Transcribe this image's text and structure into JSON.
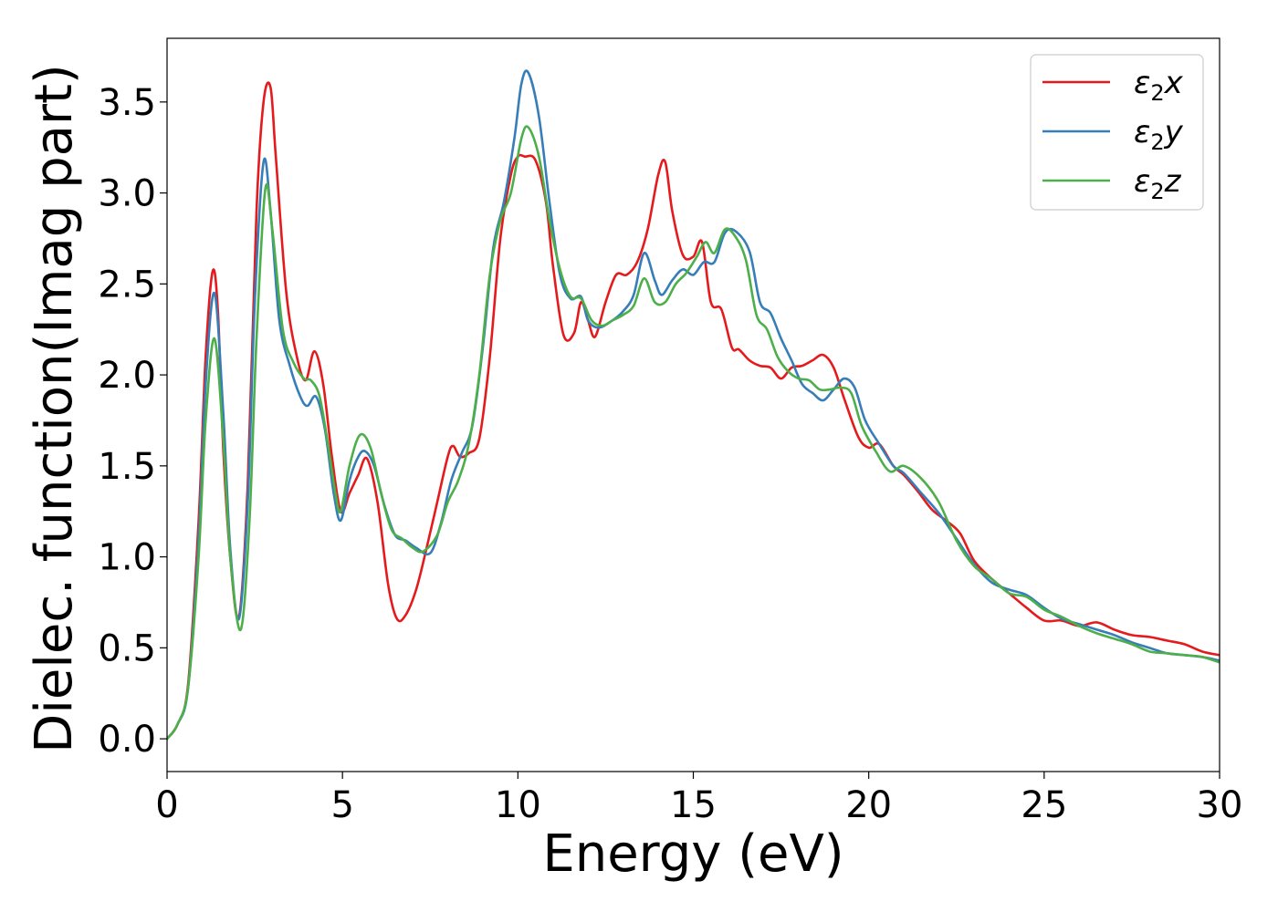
{
  "chart_data": {
    "type": "line",
    "title": "",
    "xlabel": "Energy (eV)",
    "ylabel": "Dielec. function(Imag part)",
    "xlim": [
      0,
      30
    ],
    "ylim": [
      -0.18,
      3.85
    ],
    "xticks": [
      0,
      5,
      10,
      15,
      20,
      25,
      30
    ],
    "xtick_labels": [
      "0",
      "5",
      "10",
      "15",
      "20",
      "25",
      "30"
    ],
    "yticks": [
      0.0,
      0.5,
      1.0,
      1.5,
      2.0,
      2.5,
      3.0,
      3.5
    ],
    "ytick_labels": [
      "0.0",
      "0.5",
      "1.0",
      "1.5",
      "2.0",
      "2.5",
      "3.0",
      "3.5"
    ],
    "grid": false,
    "legend_position": "top-right",
    "series": [
      {
        "name": "ε₂x",
        "legend_main": "ε",
        "legend_sub": "2",
        "legend_suffix": "x",
        "color": "#e41a1c",
        "x": [
          0,
          0.3,
          0.6,
          0.9,
          1.1,
          1.3,
          1.45,
          1.6,
          1.8,
          2.05,
          2.3,
          2.55,
          2.75,
          2.95,
          3.1,
          3.4,
          3.7,
          3.95,
          4.2,
          4.45,
          4.7,
          4.95,
          5.2,
          5.45,
          5.7,
          6.0,
          6.3,
          6.55,
          6.8,
          7.1,
          7.4,
          7.7,
          8.0,
          8.15,
          8.35,
          8.6,
          8.9,
          9.2,
          9.5,
          9.8,
          10.0,
          10.2,
          10.5,
          10.8,
          11.0,
          11.3,
          11.6,
          11.8,
          12.0,
          12.2,
          12.5,
          12.8,
          13.1,
          13.4,
          13.7,
          14.0,
          14.2,
          14.4,
          14.7,
          15.0,
          15.25,
          15.5,
          15.8,
          16.1,
          16.3,
          16.6,
          16.9,
          17.2,
          17.5,
          17.8,
          18.1,
          18.4,
          18.7,
          19.0,
          19.3,
          19.7,
          20.0,
          20.3,
          20.7,
          21.0,
          21.4,
          21.8,
          22.2,
          22.6,
          23.0,
          23.5,
          24.0,
          24.5,
          25.0,
          25.5,
          26.0,
          26.5,
          27.0,
          27.5,
          28.0,
          28.5,
          29.0,
          29.5,
          30.0
        ],
        "y": [
          0.0,
          0.08,
          0.3,
          1.2,
          2.1,
          2.57,
          2.35,
          1.6,
          1.0,
          0.67,
          1.4,
          2.9,
          3.5,
          3.58,
          3.2,
          2.45,
          2.1,
          1.97,
          2.13,
          1.95,
          1.55,
          1.25,
          1.35,
          1.45,
          1.54,
          1.3,
          0.85,
          0.66,
          0.68,
          0.82,
          1.05,
          1.3,
          1.55,
          1.61,
          1.55,
          1.57,
          1.65,
          2.1,
          2.75,
          3.1,
          3.2,
          3.2,
          3.18,
          2.95,
          2.6,
          2.22,
          2.23,
          2.4,
          2.3,
          2.21,
          2.4,
          2.55,
          2.55,
          2.62,
          2.8,
          3.1,
          3.17,
          2.9,
          2.66,
          2.65,
          2.73,
          2.4,
          2.36,
          2.15,
          2.14,
          2.08,
          2.05,
          2.04,
          1.98,
          2.04,
          2.05,
          2.08,
          2.11,
          2.04,
          1.87,
          1.66,
          1.6,
          1.62,
          1.5,
          1.45,
          1.36,
          1.26,
          1.2,
          1.13,
          0.98,
          0.88,
          0.8,
          0.72,
          0.65,
          0.65,
          0.62,
          0.64,
          0.6,
          0.57,
          0.56,
          0.54,
          0.52,
          0.48,
          0.46
        ]
      },
      {
        "name": "ε₂y",
        "legend_main": "ε",
        "legend_sub": "2",
        "legend_suffix": "y",
        "color": "#377eb8",
        "x": [
          0,
          0.3,
          0.6,
          0.9,
          1.1,
          1.35,
          1.6,
          1.8,
          2.05,
          2.3,
          2.5,
          2.75,
          2.95,
          3.2,
          3.5,
          3.8,
          4.0,
          4.25,
          4.5,
          4.75,
          4.95,
          5.2,
          5.45,
          5.65,
          5.9,
          6.2,
          6.5,
          6.8,
          7.1,
          7.5,
          7.8,
          8.1,
          8.4,
          8.7,
          9.0,
          9.3,
          9.6,
          9.9,
          10.1,
          10.3,
          10.6,
          10.9,
          11.2,
          11.5,
          11.8,
          12.0,
          12.3,
          12.7,
          13.0,
          13.3,
          13.6,
          13.9,
          14.1,
          14.4,
          14.7,
          15.0,
          15.3,
          15.6,
          15.9,
          16.2,
          16.6,
          16.9,
          17.2,
          17.5,
          17.8,
          18.1,
          18.4,
          18.7,
          19.0,
          19.3,
          19.6,
          19.9,
          20.3,
          20.7,
          21.0,
          21.5,
          22.0,
          22.5,
          23.0,
          23.5,
          24.0,
          24.5,
          25.0,
          25.5,
          26.0,
          26.5,
          27.0,
          27.5,
          28.0,
          28.5,
          29.0,
          29.5,
          30.0
        ],
        "y": [
          0.0,
          0.08,
          0.28,
          1.1,
          1.95,
          2.45,
          1.8,
          1.05,
          0.66,
          1.3,
          2.4,
          3.17,
          2.9,
          2.3,
          2.05,
          1.88,
          1.83,
          1.88,
          1.7,
          1.35,
          1.2,
          1.42,
          1.55,
          1.58,
          1.5,
          1.28,
          1.12,
          1.09,
          1.05,
          1.02,
          1.18,
          1.42,
          1.57,
          1.72,
          2.15,
          2.7,
          2.95,
          3.3,
          3.6,
          3.66,
          3.42,
          2.95,
          2.55,
          2.42,
          2.43,
          2.3,
          2.26,
          2.3,
          2.35,
          2.44,
          2.67,
          2.52,
          2.44,
          2.52,
          2.58,
          2.55,
          2.62,
          2.62,
          2.78,
          2.79,
          2.68,
          2.4,
          2.34,
          2.2,
          2.08,
          1.95,
          1.9,
          1.86,
          1.92,
          1.98,
          1.93,
          1.75,
          1.62,
          1.5,
          1.46,
          1.35,
          1.24,
          1.1,
          0.96,
          0.86,
          0.82,
          0.79,
          0.72,
          0.66,
          0.63,
          0.6,
          0.57,
          0.53,
          0.5,
          0.47,
          0.46,
          0.45,
          0.43
        ]
      },
      {
        "name": "ε₂z",
        "legend_main": "ε",
        "legend_sub": "2",
        "legend_suffix": "z",
        "color": "#4daf4a",
        "x": [
          0,
          0.3,
          0.6,
          0.9,
          1.1,
          1.35,
          1.6,
          1.8,
          2.1,
          2.35,
          2.55,
          2.8,
          3.0,
          3.3,
          3.6,
          3.9,
          4.1,
          4.35,
          4.6,
          4.8,
          4.95,
          5.2,
          5.5,
          5.8,
          6.1,
          6.4,
          6.7,
          7.0,
          7.3,
          7.7,
          8.0,
          8.3,
          8.6,
          8.9,
          9.2,
          9.5,
          9.8,
          10.1,
          10.3,
          10.6,
          10.9,
          11.2,
          11.5,
          11.8,
          12.1,
          12.4,
          12.7,
          13.0,
          13.3,
          13.6,
          13.9,
          14.2,
          14.5,
          14.8,
          15.1,
          15.35,
          15.6,
          15.9,
          16.2,
          16.5,
          16.8,
          17.1,
          17.4,
          17.7,
          18.0,
          18.3,
          18.6,
          18.9,
          19.2,
          19.5,
          19.8,
          20.2,
          20.6,
          21.0,
          21.5,
          22.0,
          22.5,
          23.0,
          23.5,
          24.0,
          24.5,
          25.0,
          25.5,
          26.0,
          26.5,
          27.0,
          27.5,
          28.0,
          28.5,
          29.0,
          29.5,
          30.0
        ],
        "y": [
          0.0,
          0.08,
          0.28,
          1.0,
          1.75,
          2.2,
          1.65,
          1.0,
          0.6,
          1.2,
          2.2,
          3.02,
          2.8,
          2.25,
          2.07,
          1.98,
          1.97,
          1.88,
          1.6,
          1.35,
          1.25,
          1.5,
          1.67,
          1.6,
          1.35,
          1.15,
          1.1,
          1.05,
          1.03,
          1.12,
          1.3,
          1.42,
          1.62,
          2.0,
          2.55,
          2.85,
          3.0,
          3.3,
          3.36,
          3.2,
          2.85,
          2.58,
          2.43,
          2.42,
          2.3,
          2.27,
          2.3,
          2.33,
          2.38,
          2.53,
          2.4,
          2.4,
          2.5,
          2.56,
          2.65,
          2.73,
          2.67,
          2.8,
          2.76,
          2.63,
          2.33,
          2.25,
          2.1,
          2.02,
          1.98,
          1.97,
          1.92,
          1.92,
          1.93,
          1.9,
          1.72,
          1.58,
          1.47,
          1.5,
          1.43,
          1.3,
          1.09,
          0.95,
          0.88,
          0.8,
          0.78,
          0.71,
          0.67,
          0.62,
          0.58,
          0.55,
          0.52,
          0.48,
          0.47,
          0.46,
          0.45,
          0.42
        ]
      }
    ]
  }
}
